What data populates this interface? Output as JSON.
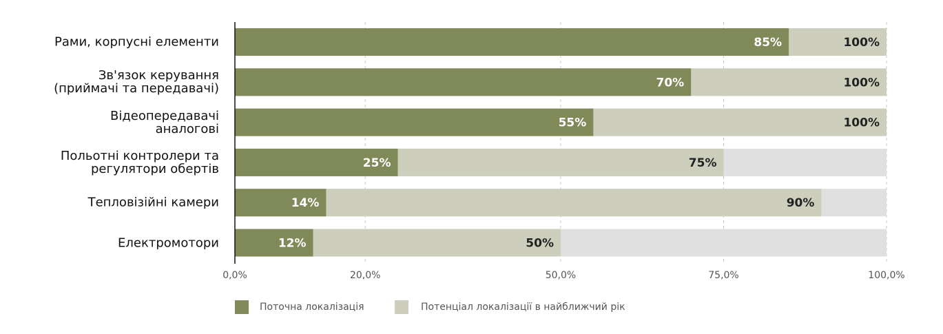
{
  "chart_data": {
    "type": "overlapping-bar",
    "categories": [
      "Рами, корпусні елементи",
      "Зв'язок керування\n(приймачі та передавачі)",
      "Відеопередавачі\nаналогові",
      "Польотні контролери та\nрегулятори обертів",
      "Тепловізійні камери",
      "Електромотори"
    ],
    "series": [
      {
        "name": "Поточна локалізація",
        "color": "#7f8a58",
        "values": [
          85,
          70,
          55,
          25,
          14,
          12
        ],
        "value_labels": [
          "85%",
          "70%",
          "55%",
          "25%",
          "14%",
          "12%"
        ]
      },
      {
        "name": "Потенціал локалізації в найближчий рік",
        "color": "#cdcfbc",
        "values": [
          100,
          100,
          100,
          75,
          90,
          50
        ],
        "value_labels": [
          "100%",
          "100%",
          "100%",
          "75%",
          "90%",
          "50%"
        ]
      }
    ],
    "xlim": [
      0,
      100
    ],
    "xticks": [
      {
        "value": 0,
        "label": "0,0%"
      },
      {
        "value": 20,
        "label": "20,0%"
      },
      {
        "value": 50,
        "label": "50,0%"
      },
      {
        "value": 75,
        "label": "75,0%"
      },
      {
        "value": 100,
        "label": "100,0%"
      }
    ],
    "grid": true
  }
}
